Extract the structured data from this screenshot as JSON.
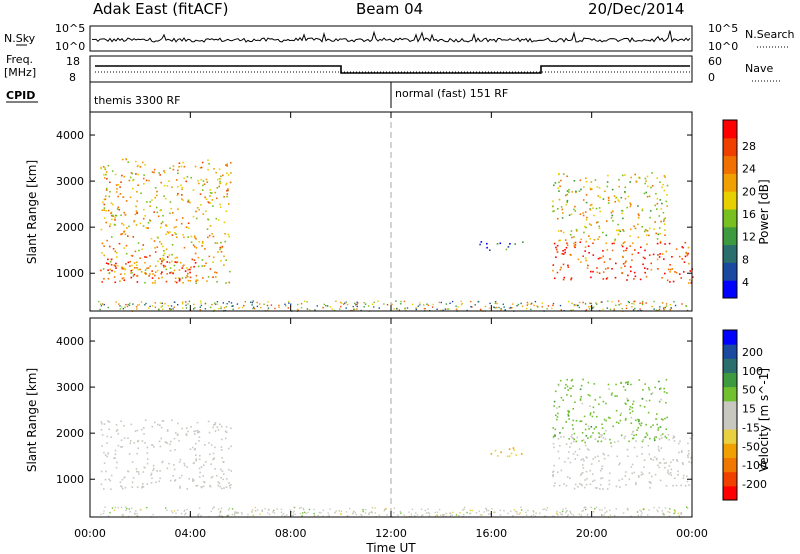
{
  "header": {
    "radar": "Adak East (fitACF)",
    "beam": "Beam 04",
    "date": "20/Dec/2014"
  },
  "panels": {
    "nsky_label": "N.Sky",
    "nsky_ticks": [
      "10^5",
      "10^0"
    ],
    "nsearch_label": "N.Search",
    "freq_label_1": "Freq.",
    "freq_label_2": "[MHz]",
    "freq_ticks": [
      "18",
      "8"
    ],
    "nave_label": "Nave",
    "nave_ticks": [
      "60",
      "0"
    ],
    "cpid_label": "CPID",
    "cpid_segments": [
      "themis 3300 RF",
      "normal (fast) 151 RF"
    ]
  },
  "axes": {
    "y_label": "Slant Range [km]",
    "y_ticks": [
      "4000",
      "3000",
      "2000",
      "1000"
    ],
    "x_label": "Time UT",
    "x_ticks": [
      "00:00",
      "04:00",
      "08:00",
      "12:00",
      "16:00",
      "20:00",
      "00:00"
    ]
  },
  "colorbars": {
    "power": {
      "label": "Power [dB]",
      "ticks": [
        "28",
        "24",
        "20",
        "16",
        "12",
        "8",
        "4"
      ],
      "colors": [
        "#0000ff",
        "#1a4aa0",
        "#2b6e6e",
        "#3e9a3e",
        "#78c020",
        "#e8d000",
        "#f0a000",
        "#f07000",
        "#f04000",
        "#ff0000"
      ]
    },
    "velocity": {
      "label": "Velocity [m s^-1]",
      "ticks": [
        "200",
        "100",
        "50",
        "15",
        "-15",
        "-50",
        "-100",
        "-200"
      ],
      "colors": [
        "#ff0000",
        "#f04000",
        "#f07800",
        "#f0a000",
        "#e8d040",
        "#c8c8c0",
        "#c8c8c0",
        "#70c030",
        "#3e9a3e",
        "#2b6e6e",
        "#1a4aa0",
        "#0000ff"
      ]
    }
  },
  "chart_data": [
    {
      "type": "heatmap",
      "title": "Adak East (fitACF) Beam 04 20/Dec/2014",
      "xlabel": "Time UT",
      "ylabel": "Slant Range [km]",
      "xlim": [
        0,
        24
      ],
      "ylim": [
        180,
        4500
      ],
      "quantity": "Power [dB]",
      "clim": [
        0,
        32
      ],
      "regions": [
        {
          "t": [
            0.4,
            5.6
          ],
          "range": [
            800,
            3500
          ],
          "value": 20
        },
        {
          "t": [
            0.4,
            4.2
          ],
          "range": [
            800,
            1400
          ],
          "value": 28
        },
        {
          "t": [
            15.5,
            17.3
          ],
          "range": [
            1500,
            1700
          ],
          "value": 8
        },
        {
          "t": [
            18.4,
            24.0
          ],
          "range": [
            800,
            1700
          ],
          "value": 26
        },
        {
          "t": [
            18.4,
            23.0
          ],
          "range": [
            1700,
            3200
          ],
          "value": 18
        }
      ]
    },
    {
      "type": "heatmap",
      "xlabel": "Time UT",
      "ylabel": "Slant Range [km]",
      "xlim": [
        0,
        24
      ],
      "ylim": [
        180,
        4500
      ],
      "quantity": "Velocity [m s^-1]",
      "clim": [
        -200,
        200
      ],
      "regions": [
        {
          "t": [
            0.4,
            5.6
          ],
          "range": [
            800,
            2300
          ],
          "value": 0
        },
        {
          "t": [
            15.5,
            17.3
          ],
          "range": [
            1500,
            1700
          ],
          "value": -60
        },
        {
          "t": [
            18.4,
            24.0
          ],
          "range": [
            800,
            2000
          ],
          "value": 0
        },
        {
          "t": [
            18.4,
            23.0
          ],
          "range": [
            1800,
            3200
          ],
          "value": 50
        }
      ]
    }
  ]
}
